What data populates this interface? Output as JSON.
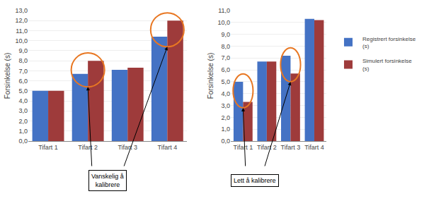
{
  "chart_data": [
    {
      "type": "bar",
      "ylabel": "Forsinkelse (s)",
      "categories": [
        "Tifart 1",
        "Tifart 2",
        "Tifart 3",
        "Tifart 4"
      ],
      "series": [
        {
          "name": "Registrert forsinkelse\n(s)",
          "color": "#4472C4",
          "values": [
            5.0,
            6.7,
            7.1,
            10.4
          ]
        },
        {
          "name": "Simulert forsinkelse\n(s)",
          "color": "#9E3B3B",
          "values": [
            5.0,
            8.0,
            7.3,
            12.0
          ]
        }
      ],
      "ylim": [
        0,
        13
      ],
      "yticks": [
        {
          "value": 0,
          "label": "0,0"
        },
        {
          "value": 1,
          "label": "1,0"
        },
        {
          "value": 2,
          "label": "2,0"
        },
        {
          "value": 3,
          "label": "3,0"
        },
        {
          "value": 4,
          "label": "4,0"
        },
        {
          "value": 5,
          "label": "5,0"
        },
        {
          "value": 6,
          "label": "6,0"
        },
        {
          "value": 7,
          "label": "7,0"
        },
        {
          "value": 8,
          "label": "8,0"
        },
        {
          "value": 9,
          "label": "9,0"
        },
        {
          "value": 10,
          "label": "10,0"
        },
        {
          "value": 11,
          "label": "11,0"
        },
        {
          "value": 12,
          "label": "12,0"
        },
        {
          "value": 13,
          "label": "13,0"
        }
      ],
      "grid": true,
      "legend": "right",
      "annotations": [
        {
          "text": "Vanskelig å\nkalibrere",
          "categories": [
            "Tifart 2",
            "Tifart 4"
          ]
        }
      ]
    },
    {
      "type": "bar",
      "ylabel": "Forsinkelse (s)",
      "categories": [
        "Tifart 1",
        "Tifart 2",
        "Tifart 3",
        "Tifart 4"
      ],
      "series": [
        {
          "name": "Registrert forsinkelse\n(s)",
          "color": "#4472C4",
          "values": [
            5.0,
            6.7,
            7.2,
            10.3
          ]
        },
        {
          "name": "Simulert forsinkelse\n(s)",
          "color": "#9E3B3B",
          "values": [
            3.3,
            6.7,
            5.7,
            10.2
          ]
        }
      ],
      "ylim": [
        0,
        11
      ],
      "yticks": [
        {
          "value": 0,
          "label": "0,0"
        },
        {
          "value": 1,
          "label": "1,0"
        },
        {
          "value": 2,
          "label": "2,0"
        },
        {
          "value": 3,
          "label": "3,0"
        },
        {
          "value": 4,
          "label": "4,0"
        },
        {
          "value": 5,
          "label": "5,0"
        },
        {
          "value": 6,
          "label": "6,0"
        },
        {
          "value": 7,
          "label": "7,0"
        },
        {
          "value": 8,
          "label": "8,0"
        },
        {
          "value": 9,
          "label": "9,0"
        },
        {
          "value": 10,
          "label": "10,0"
        },
        {
          "value": 11,
          "label": "11,0"
        }
      ],
      "grid": true,
      "legend": "right",
      "annotations": [
        {
          "text": "Lett å kalibrere",
          "categories": [
            "Tifart 1",
            "Tifart 3"
          ]
        }
      ]
    }
  ]
}
